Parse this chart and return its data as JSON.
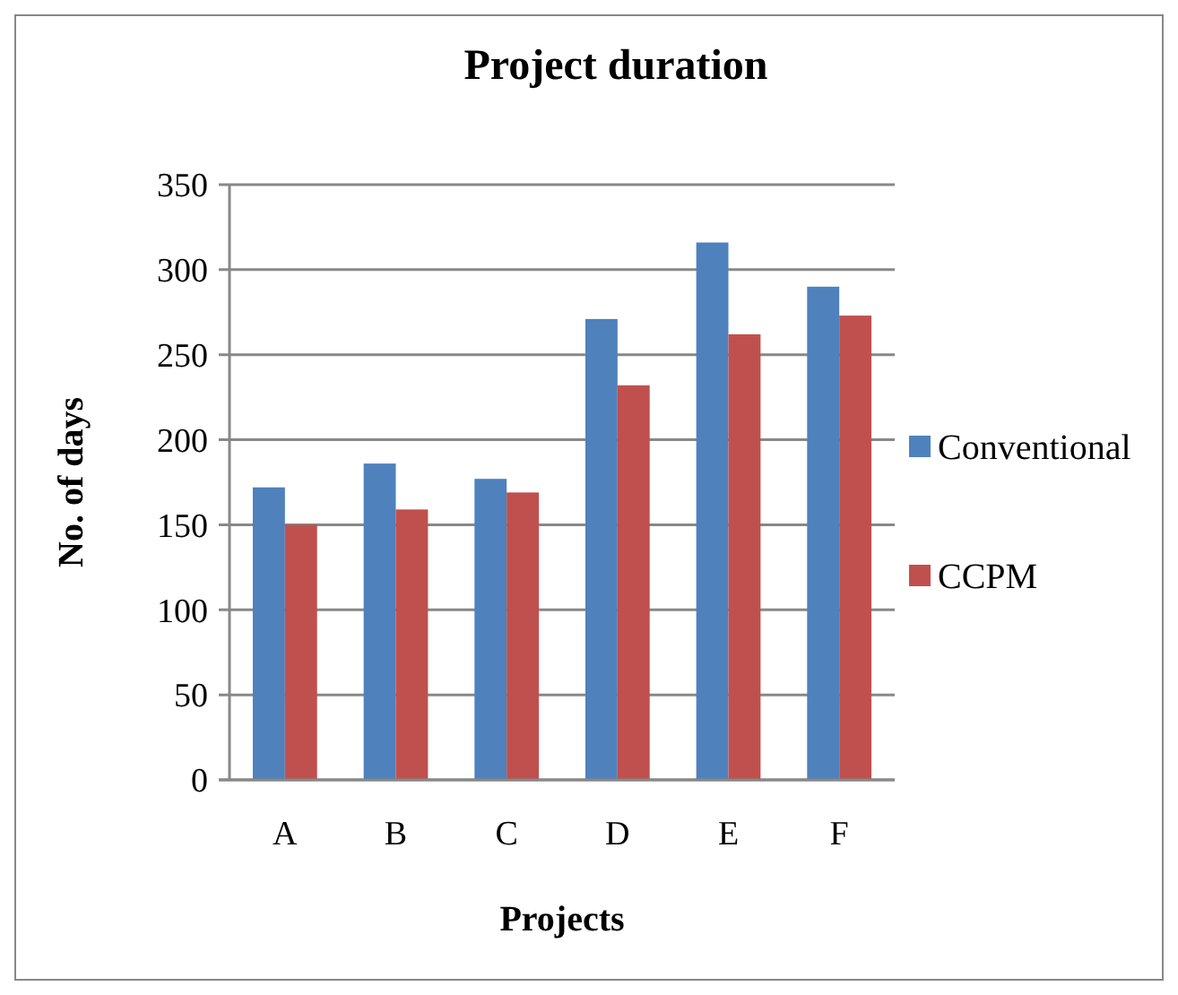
{
  "chart_data": {
    "type": "bar",
    "title": "Project duration",
    "xlabel": "Projects",
    "ylabel": "No. of days",
    "categories": [
      "A",
      "B",
      "C",
      "D",
      "E",
      "F"
    ],
    "series": [
      {
        "name": "Conventional",
        "color": "#4f81bd",
        "values": [
          172,
          186,
          177,
          271,
          316,
          290
        ]
      },
      {
        "name": "CCPM",
        "color": "#c0504d",
        "values": [
          150,
          159,
          169,
          232,
          262,
          273
        ]
      }
    ],
    "ylim": [
      0,
      350
    ],
    "yticks": [
      0,
      50,
      100,
      150,
      200,
      250,
      300,
      350
    ],
    "grid": "y",
    "legend": "right"
  }
}
